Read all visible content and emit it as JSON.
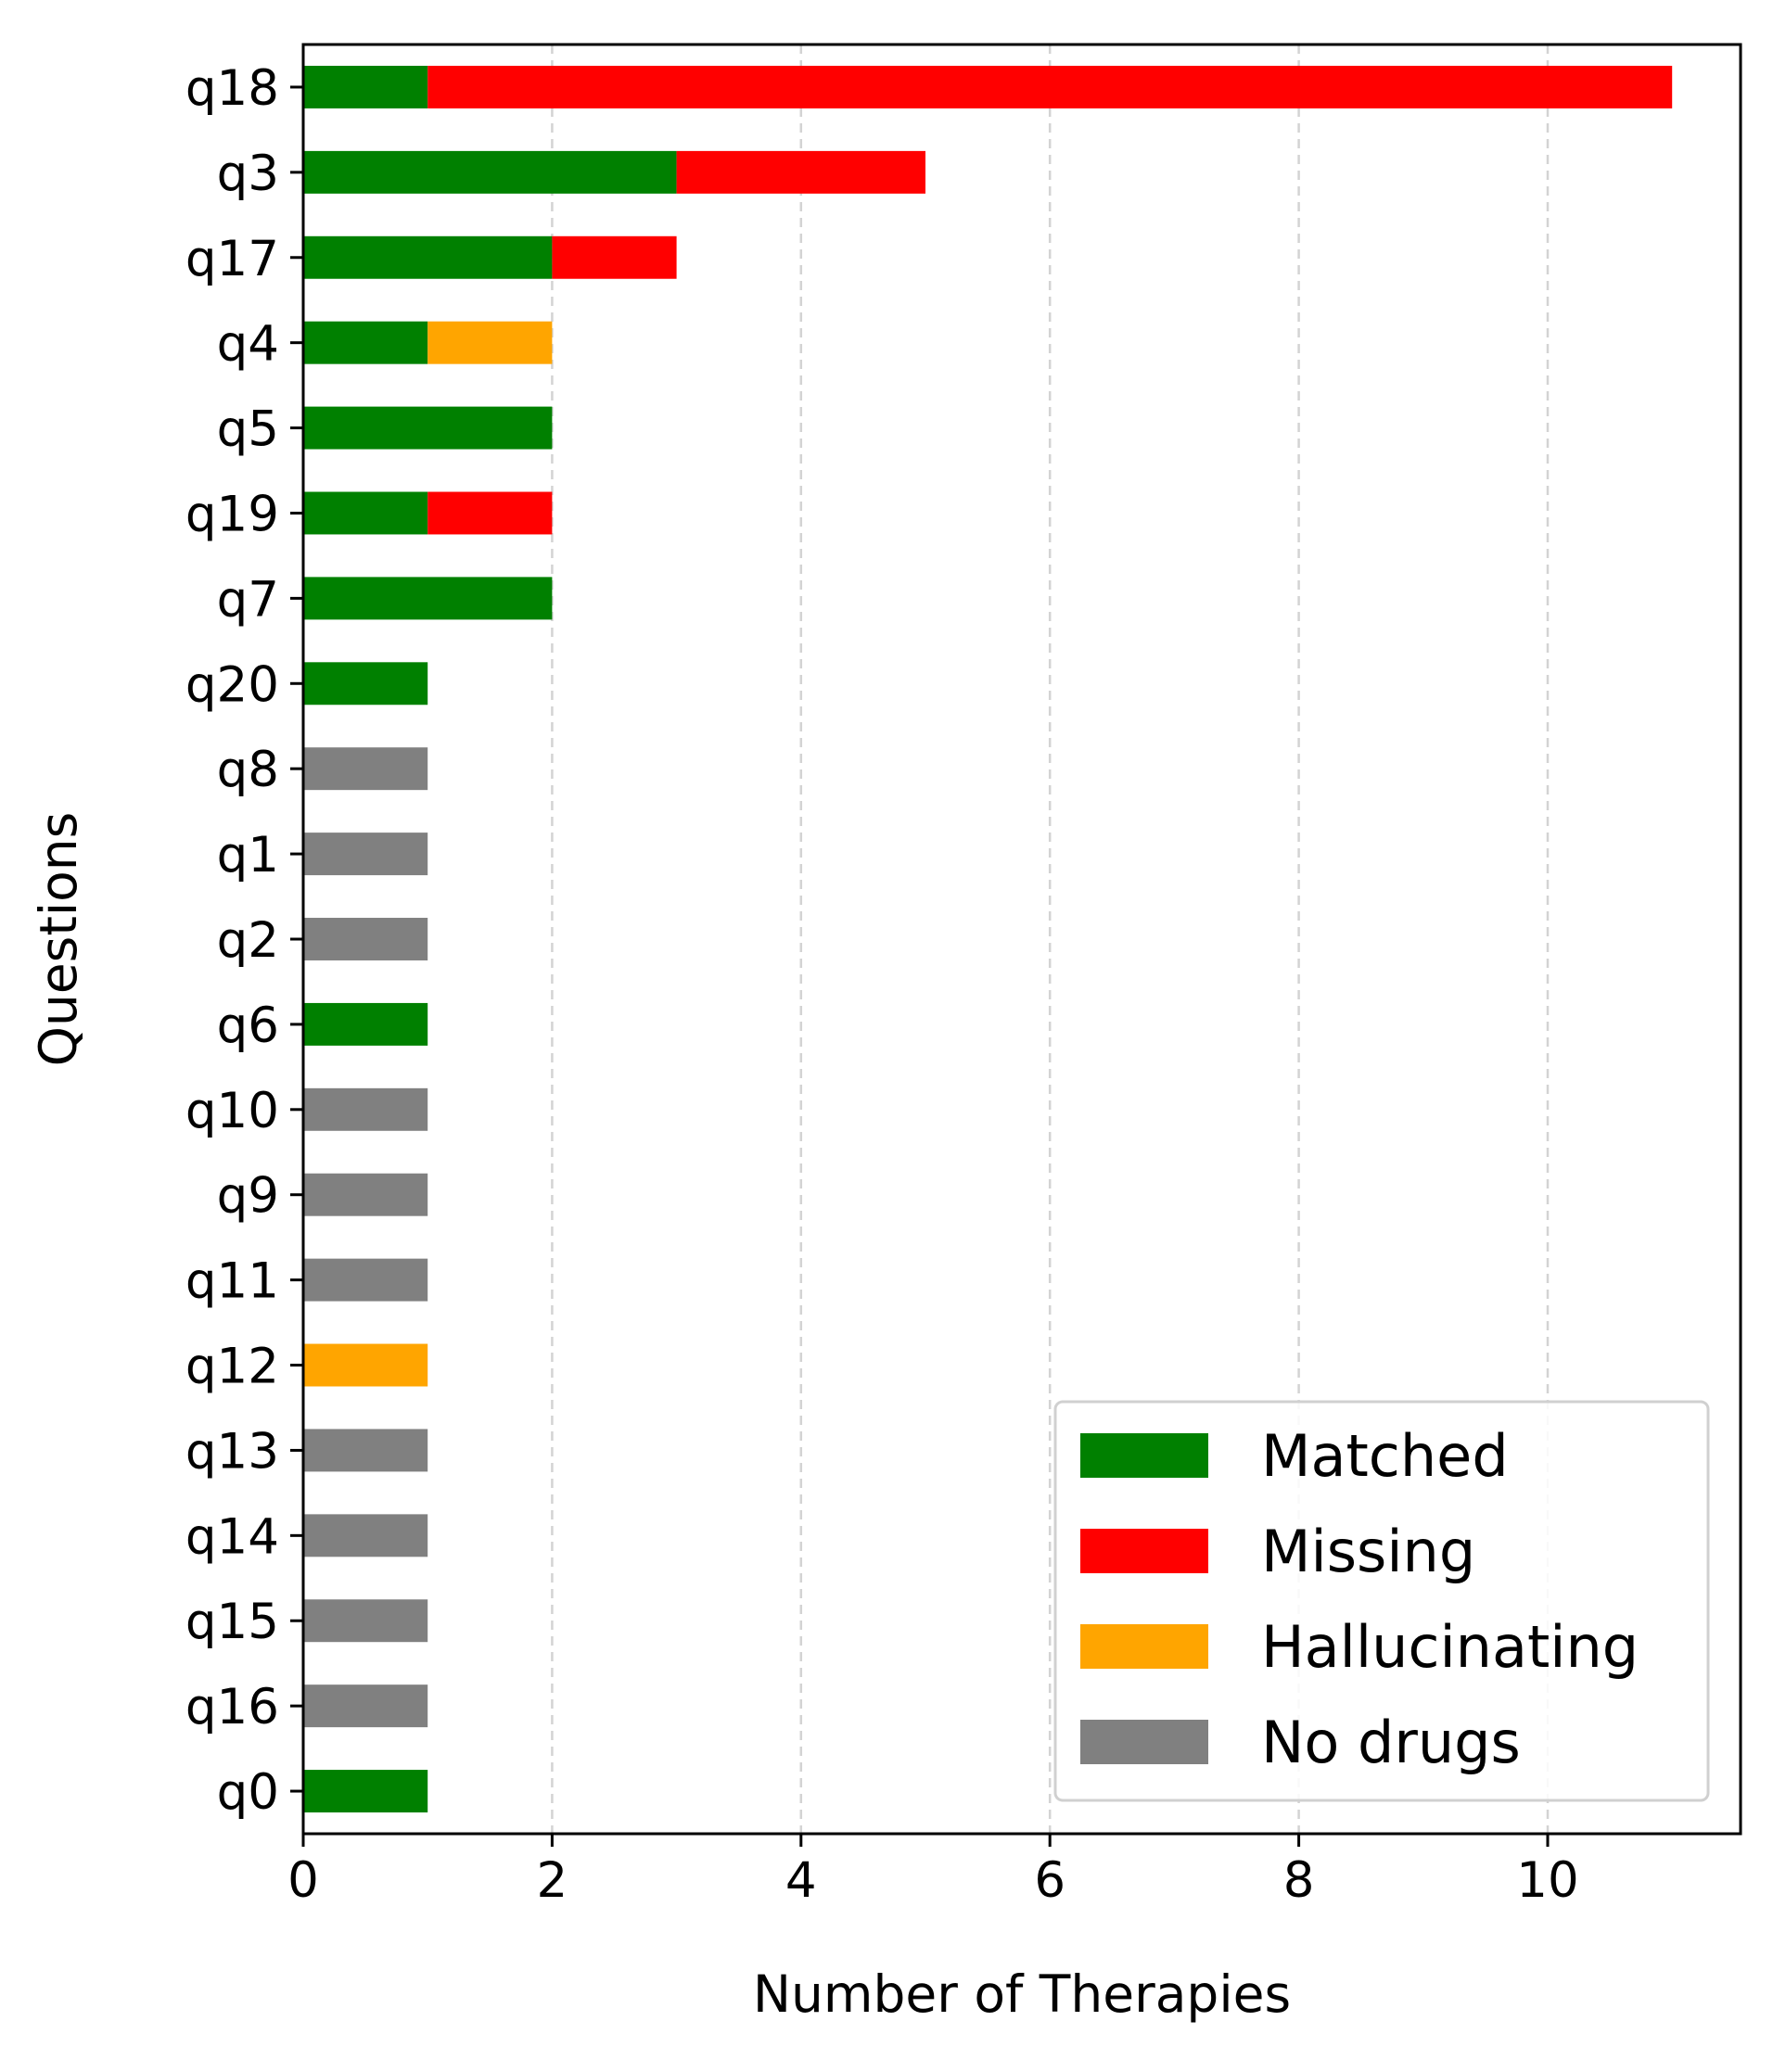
{
  "chart_data": {
    "type": "bar",
    "orientation": "horizontal",
    "stacked": true,
    "xlabel": "Number of Therapies",
    "ylabel": "Questions",
    "xlim": [
      0,
      11.55
    ],
    "xticks": [
      0,
      2,
      4,
      6,
      8,
      10
    ],
    "grid": "x-dashed",
    "legend_position": "lower-right",
    "categories": [
      "q18",
      "q3",
      "q17",
      "q4",
      "q5",
      "q19",
      "q7",
      "q20",
      "q8",
      "q1",
      "q2",
      "q6",
      "q10",
      "q9",
      "q11",
      "q12",
      "q13",
      "q14",
      "q15",
      "q16",
      "q0"
    ],
    "series": [
      {
        "name": "Matched",
        "color": "#008000",
        "values": [
          1,
          3,
          2,
          1,
          2,
          1,
          2,
          1,
          0,
          0,
          0,
          1,
          0,
          0,
          0,
          0,
          0,
          0,
          0,
          0,
          1
        ]
      },
      {
        "name": "Missing",
        "color": "#ff0000",
        "values": [
          10,
          2,
          1,
          0,
          0,
          1,
          0,
          0,
          0,
          0,
          0,
          0,
          0,
          0,
          0,
          0,
          0,
          0,
          0,
          0,
          0
        ]
      },
      {
        "name": "Hallucinating",
        "color": "#ffa500",
        "values": [
          0,
          0,
          0,
          1,
          0,
          0,
          0,
          0,
          0,
          0,
          0,
          0,
          0,
          0,
          0,
          1,
          0,
          0,
          0,
          0,
          0
        ]
      },
      {
        "name": "No drugs",
        "color": "#808080",
        "values": [
          0,
          0,
          0,
          0,
          0,
          0,
          0,
          0,
          1,
          1,
          1,
          0,
          1,
          1,
          1,
          0,
          1,
          1,
          1,
          1,
          0
        ]
      }
    ]
  }
}
